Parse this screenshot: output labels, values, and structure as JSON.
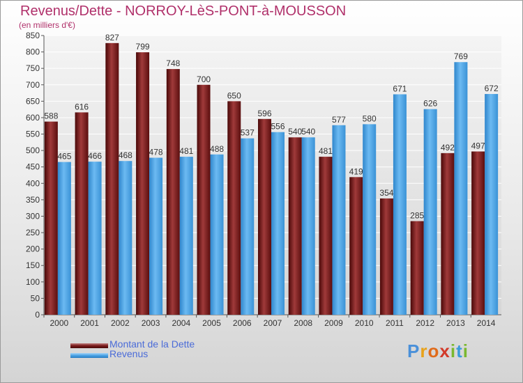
{
  "header": {
    "title": "Revenus/Dette - NORROY-LèS-PONT-à-MOUSSON",
    "subtitle": "(en milliers d'€)"
  },
  "colors": {
    "dette": "#7a1a1a",
    "revenus": "#4aa3e6",
    "title": "#b0306a",
    "legend_text": "#4a6bd8"
  },
  "chart_data": {
    "type": "bar",
    "categories": [
      "2000",
      "2001",
      "2002",
      "2003",
      "2004",
      "2005",
      "2006",
      "2007",
      "2008",
      "2009",
      "2010",
      "2011",
      "2012",
      "2013",
      "2014"
    ],
    "series": [
      {
        "name": "Montant de la Dette",
        "values": [
          588,
          616,
          827,
          799,
          748,
          700,
          650,
          596,
          540,
          481,
          419,
          354,
          285,
          492,
          497
        ]
      },
      {
        "name": "Revenus",
        "values": [
          465,
          466,
          468,
          478,
          481,
          488,
          537,
          556,
          540,
          577,
          580,
          671,
          626,
          769,
          672
        ]
      }
    ],
    "ylim": [
      0,
      850
    ],
    "yticks": [
      0,
      50,
      100,
      150,
      200,
      250,
      300,
      350,
      400,
      450,
      500,
      550,
      600,
      650,
      700,
      750,
      800,
      850
    ],
    "grid": true,
    "legend_position": "bottom-left"
  },
  "logo": {
    "letters": [
      "P",
      "r",
      "o",
      "x",
      "i",
      "t",
      "i"
    ],
    "colors": [
      "#4a90d9",
      "#e8a21a",
      "#e06b1a",
      "#d23a2a",
      "#7ab82e",
      "#3a9bd9",
      "#7ab82e"
    ]
  }
}
